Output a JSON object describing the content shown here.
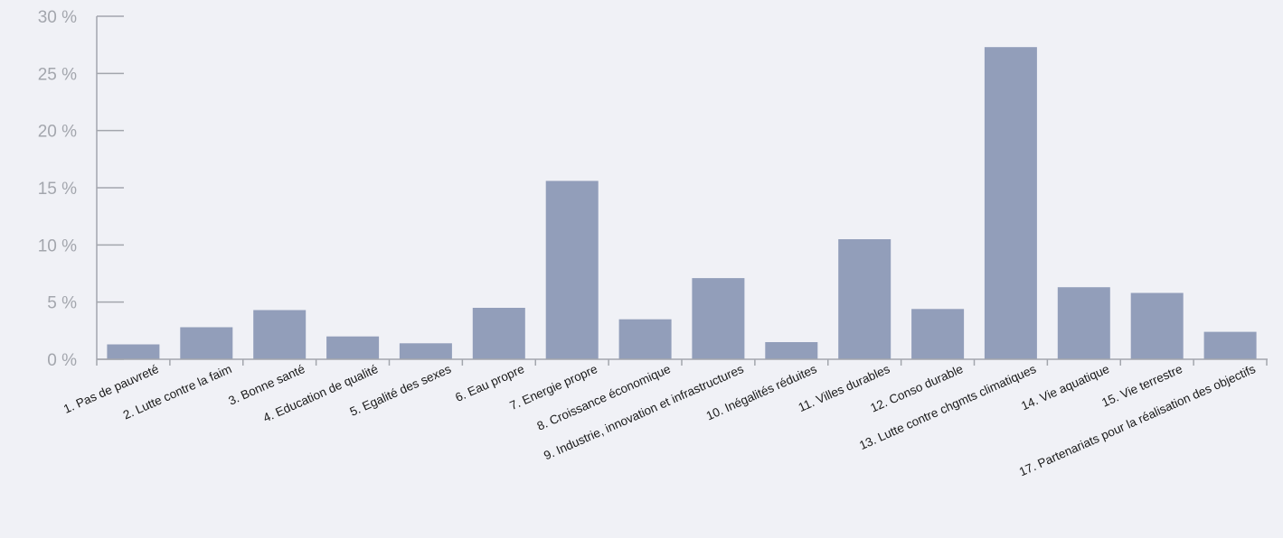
{
  "chart_data": {
    "type": "bar",
    "title": "",
    "xlabel": "",
    "ylabel": "",
    "ylim": [
      0,
      30
    ],
    "y_ticks": [
      0,
      5,
      10,
      15,
      20,
      25,
      30
    ],
    "y_tick_labels": [
      "0 %",
      "5 %",
      "10 %",
      "15 %",
      "20 %",
      "25 %",
      "30 %"
    ],
    "grid": false,
    "legend": "none",
    "colors": {
      "bar": "#929eba",
      "axis": "#a3a6ad",
      "background": "#f0f1f6",
      "label": "#1a1a1a"
    },
    "categories": [
      "1. Pas de pauvreté",
      "2. Lutte contre la faim",
      "3. Bonne santé",
      "4. Education de qualité",
      "5. Egalité des sexes",
      "6. Eau propre",
      "7. Energie propre",
      "8. Croissance économique",
      "9. Industrie, innovation et infrastructures",
      "10. Inégalités réduites",
      "11. Villes durables",
      "12. Conso durable",
      "13. Lutte contre chgmts climatiques",
      "14. Vie aquatique",
      "15. Vie terrestre",
      "17. Partenariats pour la réalisation des objectifs"
    ],
    "values": [
      1.3,
      2.8,
      4.3,
      2.0,
      1.4,
      4.5,
      15.6,
      3.5,
      7.1,
      1.5,
      10.5,
      4.4,
      27.3,
      6.3,
      5.8,
      2.4
    ]
  }
}
